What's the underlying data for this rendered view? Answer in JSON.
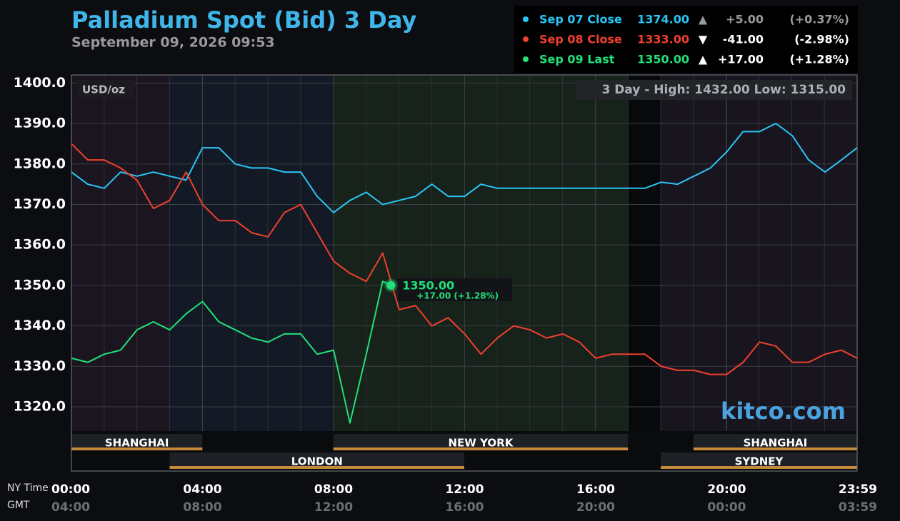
{
  "chart_data": {
    "type": "line",
    "title": "Palladium Spot (Bid) 3 Day",
    "subtitle": "September 09, 2026 09:53",
    "unit_label": "USD/oz",
    "range_note": "3 Day - High: 1432.00  Low: 1315.00",
    "watermark": "kitco.com",
    "x_axis_label": "NY Time",
    "x2_axis_label": "GMT",
    "xlim": [
      0,
      23.98
    ],
    "xticks": [
      {
        "value": 0,
        "label": "00:00"
      },
      {
        "value": 4,
        "label": "04:00"
      },
      {
        "value": 8,
        "label": "08:00"
      },
      {
        "value": 12,
        "label": "12:00"
      },
      {
        "value": 16,
        "label": "16:00"
      },
      {
        "value": 20,
        "label": "20:00"
      },
      {
        "value": 23.98,
        "label": "23:59"
      }
    ],
    "gmt_labels": [
      "04:00",
      "08:00",
      "12:00",
      "16:00",
      "20:00",
      "00:00",
      "03:59"
    ],
    "ylim": [
      1314,
      1402
    ],
    "yticks": [
      {
        "value": 1400,
        "label": "1400.0"
      },
      {
        "value": 1390,
        "label": "1390.0"
      },
      {
        "value": 1380,
        "label": "1380.0"
      },
      {
        "value": 1370,
        "label": "1370.0"
      },
      {
        "value": 1360,
        "label": "1360.0"
      },
      {
        "value": 1350,
        "label": "1350.0"
      },
      {
        "value": 1340,
        "label": "1340.0"
      },
      {
        "value": 1330,
        "label": "1330.0"
      },
      {
        "value": 1320,
        "label": "1320.0"
      }
    ],
    "grid": true,
    "sessions": [
      "SHANGHAI",
      "LONDON",
      "NEW YORK",
      "SYDNEY",
      "SHANGHAI"
    ],
    "series": [
      {
        "name": "Sep 07 Close",
        "color": "#29c5f6",
        "last_label": "1374.00",
        "arrow": "▲",
        "change_label": "+5.00",
        "change_pct_label": "(+0.37%)",
        "x": [
          0,
          0.5,
          1,
          1.5,
          2,
          2.5,
          3,
          3.5,
          4,
          4.5,
          5,
          5.5,
          6,
          6.5,
          7,
          7.5,
          8,
          8.5,
          9,
          9.5,
          10,
          10.5,
          11,
          11.5,
          12,
          12.5,
          13,
          13.5,
          14,
          14.5,
          15,
          15.5,
          16,
          16.5,
          17,
          17.5,
          18,
          18.5,
          19,
          19.5,
          20,
          20.5,
          21,
          21.5,
          22,
          22.5,
          23,
          23.5,
          23.98
        ],
        "values": [
          1378,
          1375,
          1374,
          1378,
          1377,
          1378,
          1377,
          1376,
          1384,
          1384,
          1380,
          1379,
          1379,
          1378,
          1378,
          1372,
          1368,
          1371,
          1373,
          1370,
          1371,
          1372,
          1375,
          1372,
          1372,
          1375,
          1374,
          1374,
          1374,
          1374,
          1374,
          1374,
          1374,
          1374,
          1374,
          1374,
          1375.5,
          1375,
          1377,
          1379,
          1383,
          1388,
          1388,
          1390,
          1387,
          1381,
          1378,
          1381,
          1384
        ]
      },
      {
        "name": "Sep 08 Close",
        "color": "#f0402e",
        "last_label": "1333.00",
        "arrow": "▼",
        "change_label": "-41.00",
        "change_pct_label": "(-2.98%)",
        "x": [
          0,
          0.5,
          1,
          1.5,
          2,
          2.5,
          3,
          3.5,
          4,
          4.5,
          5,
          5.5,
          6,
          6.5,
          7,
          7.5,
          8,
          8.5,
          9,
          9.5,
          10,
          10.5,
          11,
          11.5,
          12,
          12.5,
          13,
          13.5,
          14,
          14.5,
          15,
          15.5,
          16,
          16.5,
          17,
          17.5,
          18,
          18.5,
          19,
          19.5,
          20,
          20.5,
          21,
          21.5,
          22,
          22.5,
          23,
          23.5,
          23.98
        ],
        "values": [
          1385,
          1381,
          1381,
          1379,
          1376,
          1369,
          1371,
          1378,
          1370,
          1366,
          1366,
          1363,
          1362,
          1368,
          1370,
          1363,
          1356,
          1353,
          1351,
          1358,
          1344,
          1345,
          1340,
          1342,
          1338,
          1333,
          1337,
          1340,
          1339,
          1337,
          1338,
          1336,
          1332,
          1333,
          1333,
          1333,
          1330,
          1329,
          1329,
          1328,
          1328,
          1331,
          1336,
          1335,
          1331,
          1331,
          1333,
          1334,
          1332
        ]
      },
      {
        "name": "Sep 09 Last",
        "color": "#22e07a",
        "last_label": "1350.00",
        "arrow": "▲",
        "change_label": "+17.00",
        "change_pct_label": "(+1.28%)",
        "x": [
          0,
          0.5,
          1,
          1.5,
          2,
          2.5,
          3,
          3.5,
          4,
          4.5,
          5,
          5.5,
          6,
          6.5,
          7,
          7.5,
          8,
          8.5,
          9,
          9.5,
          9.75
        ],
        "values": [
          1332,
          1331,
          1333,
          1334,
          1339,
          1341,
          1339,
          1343,
          1346,
          1341,
          1339,
          1337,
          1336,
          1338,
          1338,
          1333,
          1334,
          1316,
          1333,
          1351,
          1350
        ]
      }
    ],
    "annotation": {
      "value_label": "1350.00",
      "change_label": "+17.00 (+1.28%)"
    }
  }
}
